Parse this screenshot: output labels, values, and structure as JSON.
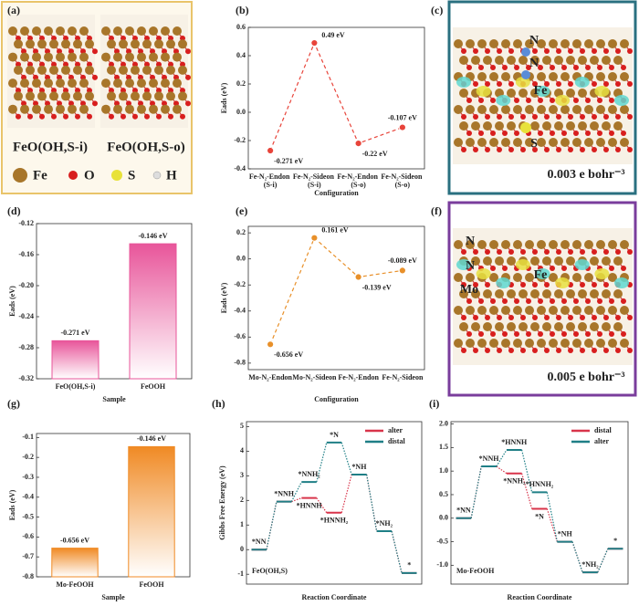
{
  "chart_data": [
    {
      "type": "line",
      "panel_label": "(b)",
      "categories": [
        "Fe-N₂-Endon (S-i)",
        "Fe-N₂-Sideon (S-i)",
        "Fe-N₂-Endon (S-o)",
        "Fe-N₂-Sideon (S-o)"
      ],
      "values": [
        -0.271,
        0.49,
        -0.22,
        -0.107
      ],
      "value_labels": [
        "-0.271 eV",
        "0.49 eV",
        "-0.22 eV",
        "-0.107 eV"
      ],
      "color": "#e8443a",
      "ylim": [
        -0.4,
        0.6
      ],
      "yticks": [
        -0.4,
        -0.2,
        {
          "value": 0,
          "label": "0.0"
        },
        0.2,
        0.4,
        0.6
      ],
      "ylabel": "Eads (eV)",
      "xlabel": "Configuration"
    },
    {
      "type": "bar",
      "panel_label": "(d)",
      "categories": [
        "FeO(OH,S-i)",
        "FeOOH"
      ],
      "values": [
        -0.271,
        -0.146
      ],
      "value_labels": [
        "-0.271 eV",
        "-0.146 eV"
      ],
      "color": "#e8559a",
      "ylim": [
        -0.32,
        -0.12
      ],
      "yticks": [
        -0.32,
        -0.28,
        -0.24,
        {
          "value": -0.2,
          "label": "-0.20"
        },
        -0.16,
        -0.12
      ],
      "ylabel": "Eads (eV)",
      "xlabel": "Sample"
    },
    {
      "type": "line",
      "panel_label": "(e)",
      "categories": [
        "Mo-N₂-Endon",
        "Mo-N₂-Sideon",
        "Fe-N₂-Endon",
        "Fe-N₂-Sideon"
      ],
      "values": [
        -0.656,
        0.161,
        -0.139,
        -0.089
      ],
      "value_labels": [
        "-0.656 eV",
        "0.161 eV",
        "-0.139 eV",
        "-0.089 eV"
      ],
      "color": "#e8902a",
      "ylim": [
        -0.85,
        0.25
      ],
      "yticks": [
        -0.8,
        -0.6,
        -0.4,
        -0.2,
        {
          "value": 0,
          "label": "0.0"
        },
        0.2
      ],
      "ylabel": "Eads (eV)",
      "xlabel": "Configuration"
    },
    {
      "type": "bar",
      "panel_label": "(g)",
      "categories": [
        "Mo-FeOOH",
        "FeOOH"
      ],
      "values": [
        -0.656,
        -0.146
      ],
      "value_labels": [
        "-0.656 eV",
        "-0.146 eV"
      ],
      "color": "#f08a24",
      "ylim": [
        -0.8,
        -0.08
      ],
      "yticks": [
        -0.8,
        -0.7,
        -0.6,
        -0.5,
        -0.4,
        -0.3,
        -0.2,
        -0.1
      ],
      "ylabel": "Eads (eV)",
      "xlabel": "Sample"
    },
    {
      "type": "step",
      "panel_label": "(h)",
      "annotation": "FeO(OH,S)",
      "ylabel": "Gibbs Free Energy (eV)",
      "xlabel": "Reaction Coordinate",
      "ylim": [
        -1.4,
        5.2
      ],
      "yticks": [
        -1,
        0,
        1,
        2,
        3,
        4,
        5
      ],
      "legend": "upper right",
      "series": [
        {
          "name": "alter",
          "color": "#d8344a",
          "values": [
            0,
            1.95,
            2.1,
            1.5,
            3.05,
            0.75,
            -0.95
          ],
          "step_labels": [
            "*NN",
            "*NNH",
            "*HNNH",
            "*HNNH₂",
            "*NH",
            "*NH₂",
            "*"
          ]
        },
        {
          "name": "distal",
          "color": "#1f7f86",
          "values": [
            0,
            1.95,
            2.75,
            4.35,
            3.05,
            0.75,
            -0.95
          ],
          "step_labels": [
            null,
            null,
            "*NNH₂",
            "*N",
            null,
            null,
            null
          ]
        }
      ]
    },
    {
      "type": "step",
      "panel_label": "(i)",
      "annotation": "Mo-FeOOH",
      "xlabel": "Reaction Coordinate",
      "ylim": [
        -1.4,
        2.05
      ],
      "yticks": [
        {
          "value": -1,
          "label": "-1.0"
        },
        -0.5,
        {
          "value": 0,
          "label": "0.0"
        },
        0.5,
        {
          "value": 1,
          "label": "1.0"
        },
        1.5,
        {
          "value": 2,
          "label": "2.0"
        }
      ],
      "legend": "upper right",
      "series": [
        {
          "name": "distal",
          "color": "#d8344a",
          "values": [
            0,
            1.1,
            0.95,
            0.2,
            -0.5,
            -1.15,
            -0.65
          ],
          "step_labels": [
            "*NN",
            "*NNH",
            "*NNH₂",
            "*N",
            "*NH",
            "*NH₂",
            "*"
          ]
        },
        {
          "name": "alter",
          "color": "#1f7f86",
          "values": [
            0,
            1.1,
            1.45,
            0.55,
            -0.5,
            -1.15,
            -0.65
          ],
          "step_labels": [
            null,
            null,
            "*HNNH",
            "*HNNH₂",
            null,
            null,
            null
          ]
        }
      ]
    }
  ],
  "images": [
    {
      "panel_label": "(a)",
      "labels": [
        "FeO(OH,S-i)",
        "FeO(OH,S-o)"
      ],
      "legend": [
        "Fe",
        "O",
        "S",
        "H"
      ]
    },
    {
      "panel_label": "(c)",
      "labels": [
        "N",
        "N",
        "Fe",
        "S"
      ],
      "caption": "0.003 e bohr⁻³"
    },
    {
      "panel_label": "(f)",
      "labels": [
        "N",
        "N",
        "Mo",
        "Fe"
      ],
      "caption": "0.005 e bohr⁻³"
    }
  ]
}
